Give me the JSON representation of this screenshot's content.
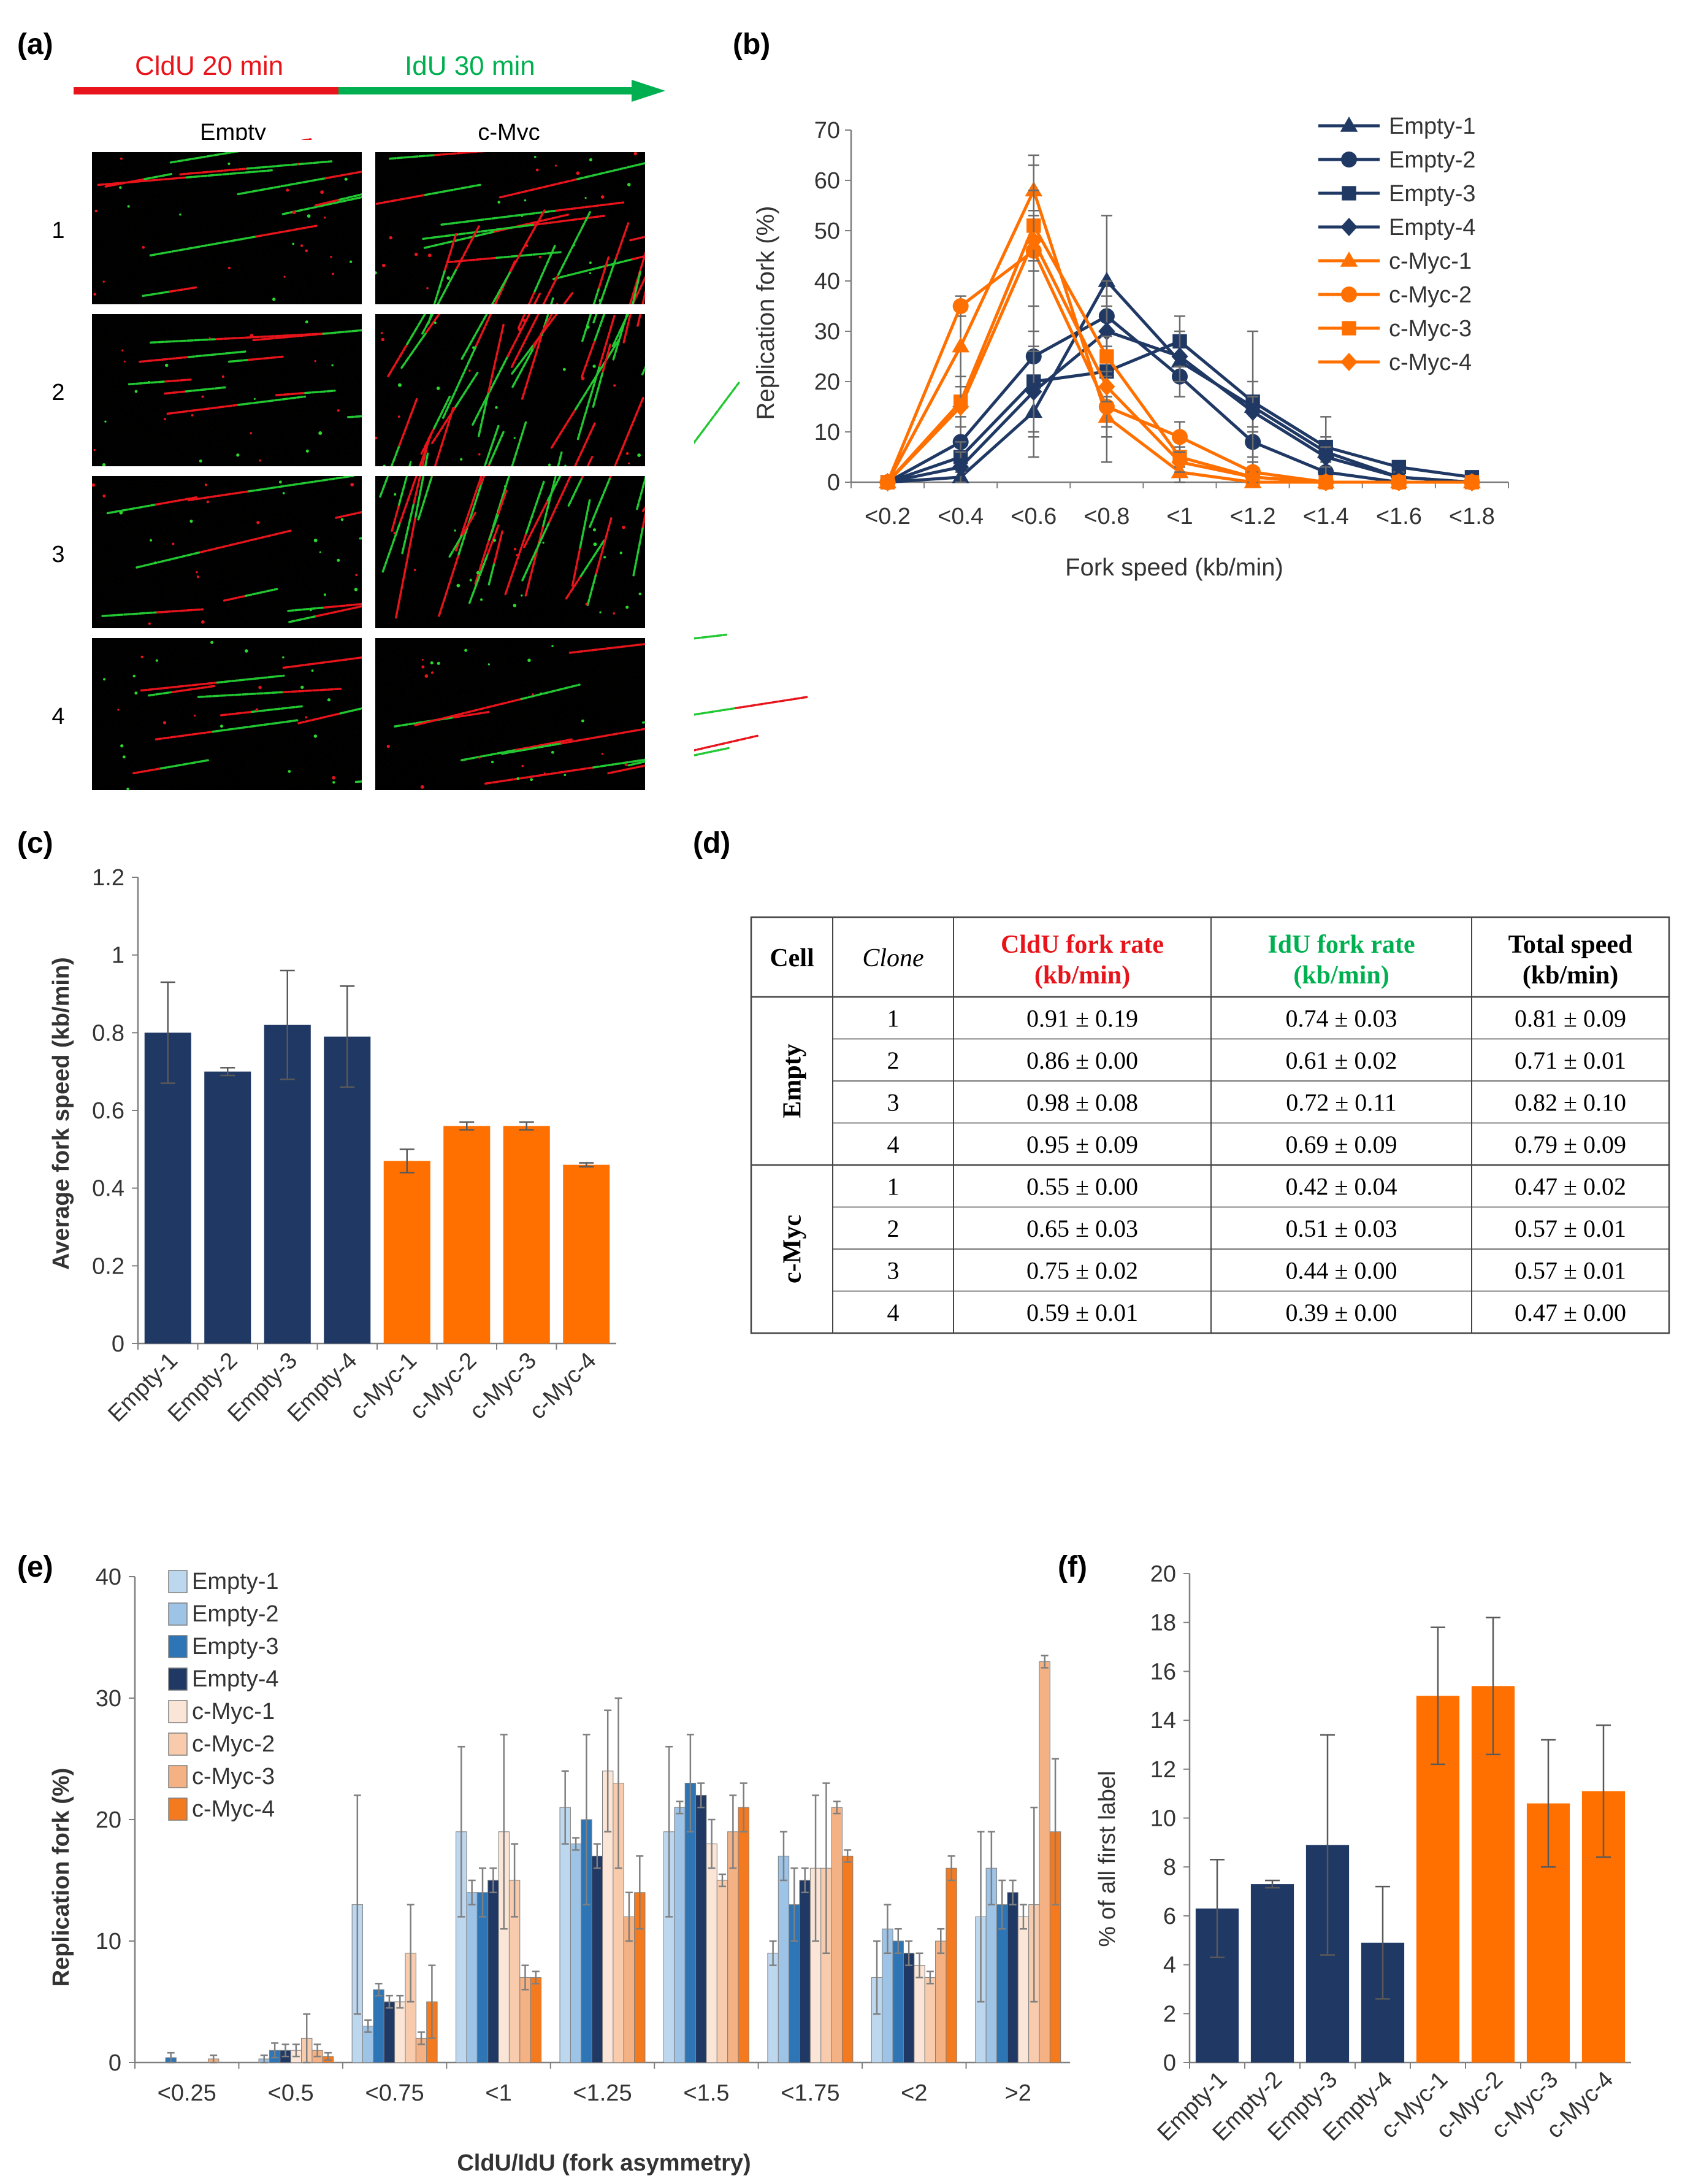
{
  "colors": {
    "empty": "#1f3864",
    "cmyc": "#ff7000",
    "cldu": "#e8141b",
    "idu": "#00b050",
    "axis": "#7f7f7f",
    "grid": "#d9d9d9",
    "err": "#595959"
  },
  "panel_a": {
    "label": "(a)",
    "cldu_label": "CldU 20 min",
    "idu_label": "IdU 30 min",
    "col_headers": [
      "Empty",
      "c-Myc"
    ],
    "row_labels": [
      "1",
      "2",
      "3",
      "4"
    ]
  },
  "panel_b": {
    "label": "(b)"
  },
  "panel_c": {
    "label": "(c)"
  },
  "panel_d": {
    "label": "(d)",
    "headers": {
      "cell": "Cell",
      "clone": "Clone",
      "cldu_1": "CldU fork rate",
      "cldu_2": "(kb/min)",
      "idu_1": "IdU fork rate",
      "idu_2": "(kb/min)",
      "total_1": "Total speed",
      "total_2": "(kb/min)"
    },
    "groups": [
      {
        "name": "Empty",
        "rows": [
          [
            "1",
            "0.91 ± 0.19",
            "0.74 ± 0.03",
            "0.81 ± 0.09"
          ],
          [
            "2",
            "0.86 ± 0.00",
            "0.61 ± 0.02",
            "0.71 ± 0.01"
          ],
          [
            "3",
            "0.98 ± 0.08",
            "0.72 ± 0.11",
            "0.82 ± 0.10"
          ],
          [
            "4",
            "0.95 ± 0.09",
            "0.69 ± 0.09",
            "0.79 ± 0.09"
          ]
        ]
      },
      {
        "name": "c-Myc",
        "rows": [
          [
            "1",
            "0.55 ± 0.00",
            "0.42 ± 0.04",
            "0.47 ± 0.02"
          ],
          [
            "2",
            "0.65 ± 0.03",
            "0.51 ± 0.03",
            "0.57 ± 0.01"
          ],
          [
            "3",
            "0.75 ± 0.02",
            "0.44 ± 0.00",
            "0.57 ± 0.01"
          ],
          [
            "4",
            "0.59 ± 0.01",
            "0.39 ± 0.00",
            "0.47 ± 0.00"
          ]
        ]
      }
    ]
  },
  "panel_e": {
    "label": "(e)"
  },
  "panel_f": {
    "label": "(f)"
  },
  "chart_data": [
    {
      "panel": "(b)",
      "type": "line",
      "categories": [
        "<0.2",
        "<0.4",
        "<0.6",
        "<0.8",
        "<1",
        "<1.2",
        "<1.4",
        "<1.6",
        "<1.8"
      ],
      "xlabel": "Fork speed (kb/min)",
      "ylabel": "Replication fork (%)",
      "ylim": [
        0,
        70
      ],
      "yticks": [
        0,
        10,
        20,
        30,
        40,
        50,
        60,
        70
      ],
      "legend": "top-right",
      "series": [
        {
          "name": "Empty-1",
          "group": "empty",
          "marker": "triangle",
          "values": [
            0,
            1,
            14,
            40,
            24,
            15,
            6,
            1,
            0
          ],
          "err": [
            0,
            1,
            5,
            13,
            4,
            5,
            3,
            1,
            0
          ]
        },
        {
          "name": "Empty-2",
          "group": "empty",
          "marker": "circle",
          "values": [
            0,
            8,
            25,
            33,
            21,
            8,
            2,
            0,
            0
          ],
          "err": [
            0,
            5,
            5,
            4,
            4,
            3,
            2,
            0,
            0
          ]
        },
        {
          "name": "Empty-3",
          "group": "empty",
          "marker": "square",
          "values": [
            0,
            5,
            20,
            22,
            28,
            16,
            7,
            3,
            1
          ],
          "err": [
            0,
            3,
            15,
            18,
            5,
            14,
            6,
            1,
            1
          ]
        },
        {
          "name": "Empty-4",
          "group": "empty",
          "marker": "diamond",
          "values": [
            0,
            3,
            18,
            30,
            25,
            14,
            5,
            1,
            0
          ],
          "err": [
            0,
            3,
            8,
            5,
            5,
            3,
            2,
            1,
            0
          ]
        },
        {
          "name": "c-Myc-1",
          "group": "cmyc",
          "marker": "triangle",
          "values": [
            0,
            27,
            58,
            13,
            2,
            0,
            0,
            0,
            0
          ],
          "err": [
            0,
            8,
            5,
            4,
            2,
            0,
            0,
            0,
            0
          ]
        },
        {
          "name": "c-Myc-2",
          "group": "cmyc",
          "marker": "circle",
          "values": [
            0,
            35,
            46,
            15,
            9,
            2,
            0,
            0,
            0
          ],
          "err": [
            0,
            2,
            19,
            4,
            3,
            2,
            0,
            0,
            0
          ]
        },
        {
          "name": "c-Myc-3",
          "group": "cmyc",
          "marker": "square",
          "values": [
            0,
            16,
            51,
            25,
            5,
            1,
            0,
            0,
            0
          ],
          "err": [
            0,
            5,
            7,
            4,
            2,
            1,
            0,
            0,
            0
          ]
        },
        {
          "name": "c-Myc-4",
          "group": "cmyc",
          "marker": "diamond",
          "values": [
            0,
            15,
            48,
            19,
            4,
            1,
            0,
            0,
            0
          ],
          "err": [
            0,
            4,
            6,
            3,
            2,
            1,
            0,
            0,
            0
          ]
        }
      ]
    },
    {
      "panel": "(c)",
      "type": "bar",
      "categories": [
        "Empty-1",
        "Empty-2",
        "Empty-3",
        "Empty-4",
        "c-Myc-1",
        "c-Myc-2",
        "c-Myc-3",
        "c-Myc-4"
      ],
      "values": [
        0.8,
        0.7,
        0.82,
        0.79,
        0.47,
        0.56,
        0.56,
        0.46
      ],
      "err": [
        0.13,
        0.01,
        0.14,
        0.13,
        0.03,
        0.01,
        0.01,
        0.005
      ],
      "groups": [
        "empty",
        "empty",
        "empty",
        "empty",
        "cmyc",
        "cmyc",
        "cmyc",
        "cmyc"
      ],
      "ylabel": "Average fork speed (kb/min)",
      "ylim": [
        0,
        1.2
      ],
      "yticks": [
        "0",
        "0.2",
        "0.4",
        "0.6",
        "0.8",
        "1",
        "1.2"
      ]
    },
    {
      "panel": "(e)",
      "type": "bar",
      "categories": [
        "<0.25",
        "<0.5",
        "<0.75",
        "<1",
        "<1.25",
        "<1.5",
        "<1.75",
        "<2",
        ">2"
      ],
      "xlabel": "CldU/IdU (fork asymmetry)",
      "ylabel": "Replication fork (%)",
      "ylim": [
        0,
        40
      ],
      "yticks": [
        0,
        10,
        20,
        30,
        40
      ],
      "legend": "top-left",
      "series": [
        {
          "name": "Empty-1",
          "color": "#bdd7ee",
          "values": [
            0,
            0,
            13,
            19,
            21,
            19,
            9,
            7,
            12
          ],
          "err": [
            0,
            0,
            9,
            7,
            3,
            7,
            1,
            3,
            7
          ]
        },
        {
          "name": "Empty-2",
          "color": "#9dc3e6",
          "values": [
            0,
            0.3,
            3,
            14,
            18,
            21,
            17,
            11,
            16
          ],
          "err": [
            0,
            0.3,
            0.5,
            1,
            0.5,
            0.5,
            2,
            2,
            3
          ]
        },
        {
          "name": "Empty-3",
          "color": "#2e75b6",
          "values": [
            0.4,
            1,
            6,
            14,
            20,
            23,
            13,
            10,
            13
          ],
          "err": [
            0.4,
            0.6,
            0.5,
            2,
            7,
            4,
            3,
            1,
            2
          ]
        },
        {
          "name": "Empty-4",
          "color": "#1f3864",
          "values": [
            0,
            1,
            5,
            15,
            17,
            22,
            15,
            9,
            14
          ],
          "err": [
            0,
            0.5,
            0.5,
            1,
            1,
            1,
            1,
            1,
            1
          ]
        },
        {
          "name": "c-Myc-1",
          "color": "#fbe5d6",
          "values": [
            0,
            1,
            5,
            19,
            24,
            18,
            16,
            8,
            12
          ],
          "err": [
            0,
            0.5,
            0.5,
            8,
            5,
            2,
            6,
            1,
            1
          ]
        },
        {
          "name": "c-Myc-2",
          "color": "#f8cbad",
          "values": [
            0,
            2,
            9,
            15,
            23,
            15,
            16,
            7,
            13
          ],
          "err": [
            0,
            2,
            4,
            3,
            7,
            0.5,
            7,
            0.5,
            8
          ]
        },
        {
          "name": "c-Myc-3",
          "color": "#f4b183",
          "values": [
            0.3,
            1,
            2,
            7,
            12,
            19,
            21,
            10,
            33
          ],
          "err": [
            0.3,
            0.5,
            0.5,
            1,
            2,
            3,
            0.5,
            1,
            0.5
          ]
        },
        {
          "name": "c-Myc-4",
          "color": "#f47a20",
          "values": [
            0,
            0.5,
            5,
            7,
            14,
            21,
            17,
            16,
            19
          ],
          "err": [
            0,
            0.3,
            3,
            0.5,
            3,
            2,
            0.5,
            1,
            6
          ]
        }
      ]
    },
    {
      "panel": "(f)",
      "type": "bar",
      "categories": [
        "Empty-1",
        "Empty-2",
        "Empty-3",
        "Empty-4",
        "c-Myc-1",
        "c-Myc-2",
        "c-Myc-3",
        "c-Myc-4"
      ],
      "values": [
        6.3,
        7.3,
        8.9,
        4.9,
        15.0,
        15.4,
        10.6,
        11.1
      ],
      "err": [
        2.0,
        0.15,
        4.5,
        2.3,
        2.8,
        2.8,
        2.6,
        2.7
      ],
      "groups": [
        "empty",
        "empty",
        "empty",
        "empty",
        "cmyc",
        "cmyc",
        "cmyc",
        "cmyc"
      ],
      "ylabel": "% of all first label",
      "ylim": [
        0,
        20
      ],
      "yticks": [
        0,
        2,
        4,
        6,
        8,
        10,
        12,
        14,
        16,
        18,
        20
      ]
    }
  ]
}
